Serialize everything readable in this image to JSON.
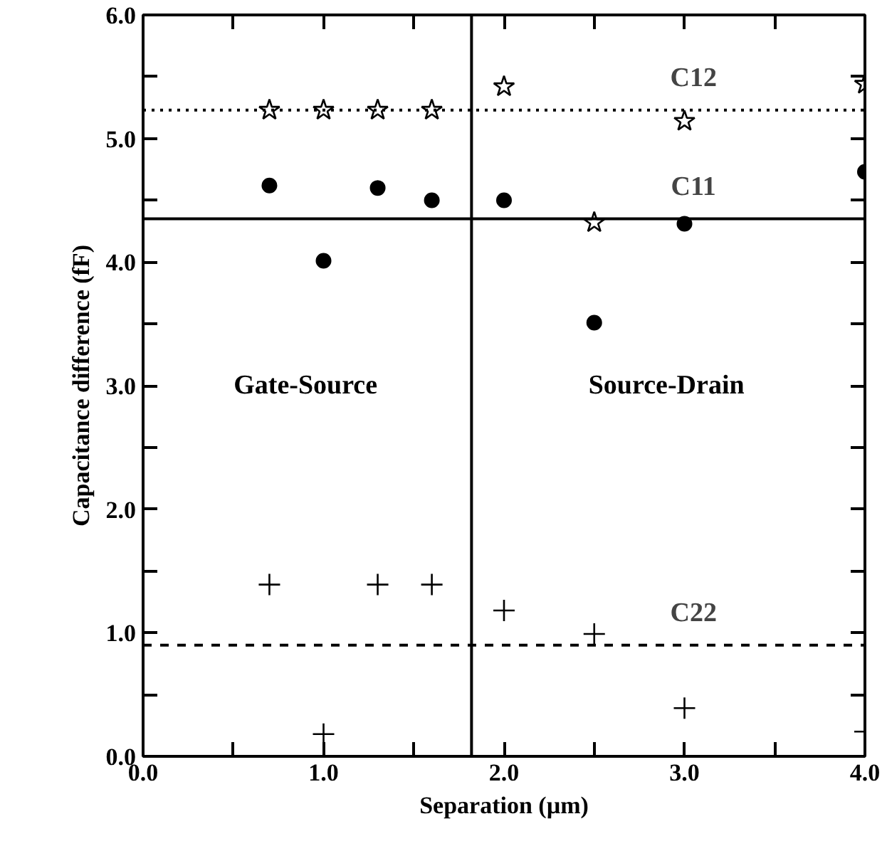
{
  "chart_data": {
    "type": "scatter",
    "xlabel": "Separation (µm)",
    "ylabel": "Capacitance difference (fF)",
    "xlim": [
      0,
      4
    ],
    "ylim": [
      0,
      6
    ],
    "xticks": [
      {
        "value": 0,
        "label": "0.0"
      },
      {
        "value": 0.5,
        "label": null
      },
      {
        "value": 1,
        "label": "1.0"
      },
      {
        "value": 1.5,
        "label": null
      },
      {
        "value": 2,
        "label": "2.0"
      },
      {
        "value": 2.5,
        "label": null
      },
      {
        "value": 3,
        "label": "3.0"
      },
      {
        "value": 3.5,
        "label": null
      },
      {
        "value": 4,
        "label": "4.0"
      }
    ],
    "yticks": [
      {
        "value": 0,
        "label": "0.0"
      },
      {
        "value": 0.5,
        "label": null
      },
      {
        "value": 1,
        "label": "1.0"
      },
      {
        "value": 1.5,
        "label": null
      },
      {
        "value": 2,
        "label": "2.0"
      },
      {
        "value": 2.5,
        "label": null
      },
      {
        "value": 3,
        "label": "3.0"
      },
      {
        "value": 3.5,
        "label": null
      },
      {
        "value": 4,
        "label": "4.0"
      },
      {
        "value": 4.5,
        "label": null
      },
      {
        "value": 5,
        "label": "5.0"
      },
      {
        "value": 5.5,
        "label": null
      },
      {
        "value": 6,
        "label": "6.0"
      }
    ],
    "grid": false,
    "series": [
      {
        "color": "#000000",
        "marker": "star",
        "x": [
          0.7,
          1.0,
          1.3,
          1.6,
          2.0,
          2.5,
          3.0,
          4.0
        ],
        "values": [
          5.23,
          5.23,
          5.23,
          5.23,
          5.42,
          4.32,
          5.14,
          5.44
        ]
      },
      {
        "color": "#000000",
        "marker": "circle",
        "x": [
          0.7,
          1.0,
          1.3,
          1.6,
          2.0,
          2.5,
          3.0,
          4.0
        ],
        "values": [
          4.62,
          4.01,
          4.6,
          4.5,
          4.5,
          3.51,
          4.31,
          4.73
        ]
      },
      {
        "color": "#000000",
        "marker": "cross",
        "x": [
          0.7,
          1.0,
          1.3,
          1.6,
          2.0,
          2.5,
          3.0,
          4.0
        ],
        "values": [
          1.39,
          0.18,
          1.39,
          1.39,
          1.18,
          0.99,
          0.39,
          0.2
        ]
      }
    ],
    "ref_lines": [
      {
        "axis": "y",
        "value": 5.23,
        "label": "C12",
        "line_style": "dotted",
        "color": "#000000"
      },
      {
        "axis": "y",
        "value": 4.35,
        "label": "C11",
        "line_style": "solid",
        "color": "#000000"
      },
      {
        "axis": "y",
        "value": 0.9,
        "label": "C22",
        "line_style": "dashed",
        "color": "#000000"
      },
      {
        "axis": "x",
        "value": 1.82,
        "label": null,
        "line_style": "solid",
        "color": "#000000"
      }
    ],
    "annotations": [
      "Gate-Source",
      "Source-Drain"
    ]
  }
}
